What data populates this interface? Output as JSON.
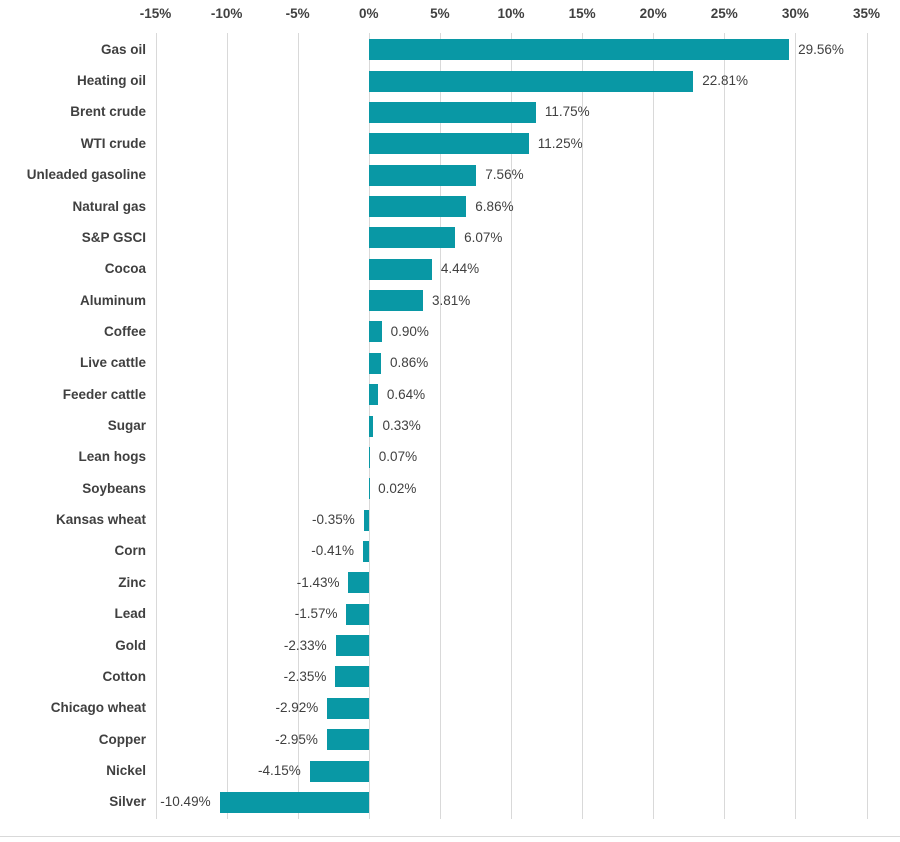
{
  "chart_data": {
    "type": "bar",
    "orientation": "horizontal",
    "title": "",
    "categories": [
      "Gas oil",
      "Heating oil",
      "Brent crude",
      "WTI crude",
      "Unleaded gasoline",
      "Natural gas",
      "S&P GSCI",
      "Cocoa",
      "Aluminum",
      "Coffee",
      "Live cattle",
      "Feeder cattle",
      "Sugar",
      "Lean hogs",
      "Soybeans",
      "Kansas wheat",
      "Corn",
      "Zinc",
      "Lead",
      "Gold",
      "Cotton",
      "Chicago wheat",
      "Copper",
      "Nickel",
      "Silver"
    ],
    "values": [
      29.56,
      22.81,
      11.75,
      11.25,
      7.56,
      6.86,
      6.07,
      4.44,
      3.81,
      0.9,
      0.86,
      0.64,
      0.33,
      0.07,
      0.02,
      -0.35,
      -0.41,
      -1.43,
      -1.57,
      -2.33,
      -2.35,
      -2.92,
      -2.95,
      -4.15,
      -10.49
    ],
    "value_labels": [
      "29.56%",
      "22.81%",
      "11.75%",
      "11.25%",
      "7.56%",
      "6.86%",
      "6.07%",
      "4.44%",
      "3.81%",
      "0.90%",
      "0.86%",
      "0.64%",
      "0.33%",
      "0.07%",
      "0.02%",
      "-0.35%",
      "-0.41%",
      "-1.43%",
      "-1.57%",
      "-2.33%",
      "-2.35%",
      "-2.92%",
      "-2.95%",
      "-4.15%",
      "-10.49%"
    ],
    "x_ticks": [
      -15,
      -10,
      -5,
      0,
      5,
      10,
      15,
      20,
      25,
      30,
      35
    ],
    "x_tick_labels": [
      "-15%",
      "-10%",
      "-5%",
      "0%",
      "5%",
      "10%",
      "15%",
      "20%",
      "25%",
      "30%",
      "35%"
    ],
    "xlim": [
      -15,
      35
    ],
    "grid": true,
    "legend_position": "none",
    "colors": {
      "bar": "#0998A5",
      "gridline": "#D9D9D9",
      "text": "#404040",
      "background": "#FFFFFF",
      "bottom_border": "#D9D9D9"
    }
  }
}
